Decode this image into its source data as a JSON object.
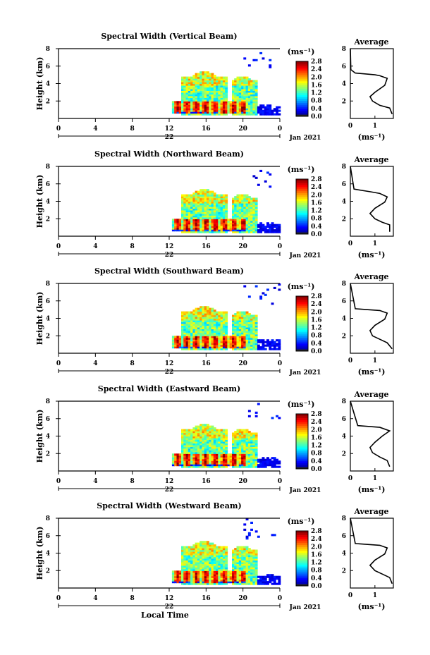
{
  "chart_data": [
    {
      "type": "heatmap",
      "title": "Spectral Width (Vertical Beam)",
      "ylabel": "Height (km)",
      "xticks": [
        "0",
        "4",
        "8",
        "12",
        "16",
        "20",
        "0"
      ],
      "date_label": "22",
      "month_label": "Jan 2021",
      "xlim": [
        0,
        24
      ],
      "ylim": [
        0,
        8
      ],
      "yticks": [
        "2",
        "4",
        "6",
        "8"
      ],
      "colorbar": {
        "unit": "(ms⁻¹)",
        "ticks": [
          "0.0",
          "0.4",
          "0.8",
          "1.2",
          "1.6",
          "2.0",
          "2.4",
          "2.8"
        ],
        "range": [
          0,
          2.8
        ]
      },
      "profile": {
        "title": "Average",
        "xlabel": "(ms⁻¹)",
        "xticks": [
          "0",
          "1"
        ],
        "yticks": [
          "2",
          "4",
          "6",
          "8"
        ],
        "x": [
          1.7,
          1.6,
          1.2,
          0.9,
          0.8,
          1.0,
          1.4,
          1.5,
          1.2,
          1.0,
          0.2,
          0.02,
          0.0
        ],
        "y": [
          0.5,
          1.2,
          1.5,
          2.0,
          2.5,
          3.0,
          3.8,
          4.6,
          4.9,
          5.0,
          5.2,
          5.6,
          8.0
        ]
      }
    },
    {
      "type": "heatmap",
      "title": "Spectral Width (Northward Beam)",
      "ylabel": "Height (km)",
      "xticks": [
        "0",
        "4",
        "8",
        "12",
        "16",
        "20",
        "0"
      ],
      "date_label": "22",
      "month_label": "Jan 2021",
      "xlim": [
        0,
        24
      ],
      "ylim": [
        0,
        8
      ],
      "yticks": [
        "2",
        "4",
        "6",
        "8"
      ],
      "colorbar": {
        "unit": "(ms⁻¹)",
        "ticks": [
          "0.0",
          "0.4",
          "0.8",
          "1.2",
          "1.6",
          "2.0",
          "2.4",
          "2.8"
        ],
        "range": [
          0,
          2.8
        ]
      },
      "profile": {
        "title": "Average",
        "xlabel": "(ms⁻¹)",
        "xticks": [
          "0",
          "1"
        ],
        "yticks": [
          "2",
          "4",
          "6",
          "8"
        ],
        "x": [
          1.6,
          1.6,
          1.3,
          1.0,
          0.8,
          1.0,
          1.4,
          1.5,
          1.2,
          0.8,
          0.15,
          0.0
        ],
        "y": [
          0.5,
          1.3,
          1.6,
          2.0,
          2.6,
          3.2,
          3.9,
          4.5,
          4.9,
          5.1,
          5.4,
          8.0
        ]
      }
    },
    {
      "type": "heatmap",
      "title": "Spectral Width (Southward Beam)",
      "ylabel": "Height (km)",
      "xticks": [
        "0",
        "4",
        "8",
        "12",
        "16",
        "20",
        "0"
      ],
      "date_label": "22",
      "month_label": "Jan 2021",
      "xlim": [
        0,
        24
      ],
      "ylim": [
        0,
        8
      ],
      "yticks": [
        "2",
        "4",
        "6",
        "8"
      ],
      "colorbar": {
        "unit": "(ms⁻¹)",
        "ticks": [
          "0.0",
          "0.4",
          "0.8",
          "1.2",
          "1.6",
          "2.0",
          "2.4",
          "2.8"
        ],
        "range": [
          0,
          2.8
        ]
      },
      "profile": {
        "title": "Average",
        "xlabel": "(ms⁻¹)",
        "xticks": [
          "0",
          "1"
        ],
        "yticks": [
          "2",
          "4",
          "6",
          "8"
        ],
        "x": [
          1.7,
          1.5,
          1.2,
          0.9,
          0.8,
          1.0,
          1.4,
          1.5,
          1.2,
          0.2,
          0.0
        ],
        "y": [
          0.5,
          1.2,
          1.6,
          2.0,
          2.6,
          3.2,
          3.9,
          4.6,
          4.9,
          5.1,
          8.0
        ]
      }
    },
    {
      "type": "heatmap",
      "title": "Spectral Width (Eastward Beam)",
      "ylabel": "Height (km)",
      "xticks": [
        "0",
        "4",
        "8",
        "12",
        "16",
        "20",
        "0"
      ],
      "date_label": "22",
      "month_label": "Jan 2021",
      "xlim": [
        0,
        24
      ],
      "ylim": [
        0,
        8
      ],
      "yticks": [
        "2",
        "4",
        "6",
        "8"
      ],
      "colorbar": {
        "unit": "(ms⁻¹)",
        "ticks": [
          "0.0",
          "0.4",
          "0.8",
          "1.2",
          "1.6",
          "2.0",
          "2.4",
          "2.8"
        ],
        "range": [
          0,
          2.8
        ]
      },
      "profile": {
        "title": "Average",
        "xlabel": "(ms⁻¹)",
        "xticks": [
          "0",
          "1"
        ],
        "yticks": [
          "2",
          "4",
          "6",
          "8"
        ],
        "x": [
          1.6,
          1.5,
          1.2,
          0.9,
          0.8,
          1.0,
          1.3,
          1.6,
          1.2,
          0.3,
          0.0
        ],
        "y": [
          0.5,
          1.2,
          1.6,
          2.1,
          2.7,
          3.3,
          4.0,
          4.6,
          5.0,
          5.2,
          8.0
        ]
      }
    },
    {
      "type": "heatmap",
      "title": "Spectral Width (Westward Beam)",
      "ylabel": "Height (km)",
      "xticks": [
        "0",
        "4",
        "8",
        "12",
        "16",
        "20",
        "0"
      ],
      "date_label": "22",
      "month_label": "Jan 2021",
      "xlim": [
        0,
        24
      ],
      "ylim": [
        0,
        8
      ],
      "yticks": [
        "2",
        "4",
        "6",
        "8"
      ],
      "colorbar": {
        "unit": "(ms⁻¹)",
        "ticks": [
          "0.0",
          "0.4",
          "0.8",
          "1.2",
          "1.6",
          "2.0",
          "2.4",
          "2.8"
        ],
        "range": [
          0,
          2.8
        ]
      },
      "profile": {
        "title": "Average",
        "xlabel": "(ms⁻¹)",
        "xticks": [
          "0",
          "1"
        ],
        "yticks": [
          "2",
          "4",
          "6",
          "8"
        ],
        "x": [
          1.7,
          1.6,
          1.3,
          1.0,
          0.8,
          1.0,
          1.4,
          1.5,
          1.2,
          0.2,
          0.0
        ],
        "y": [
          0.5,
          1.2,
          1.6,
          2.0,
          2.6,
          3.2,
          3.9,
          4.6,
          4.9,
          5.1,
          8.0
        ]
      }
    }
  ],
  "footer": {
    "xlabel": "Local Time"
  }
}
